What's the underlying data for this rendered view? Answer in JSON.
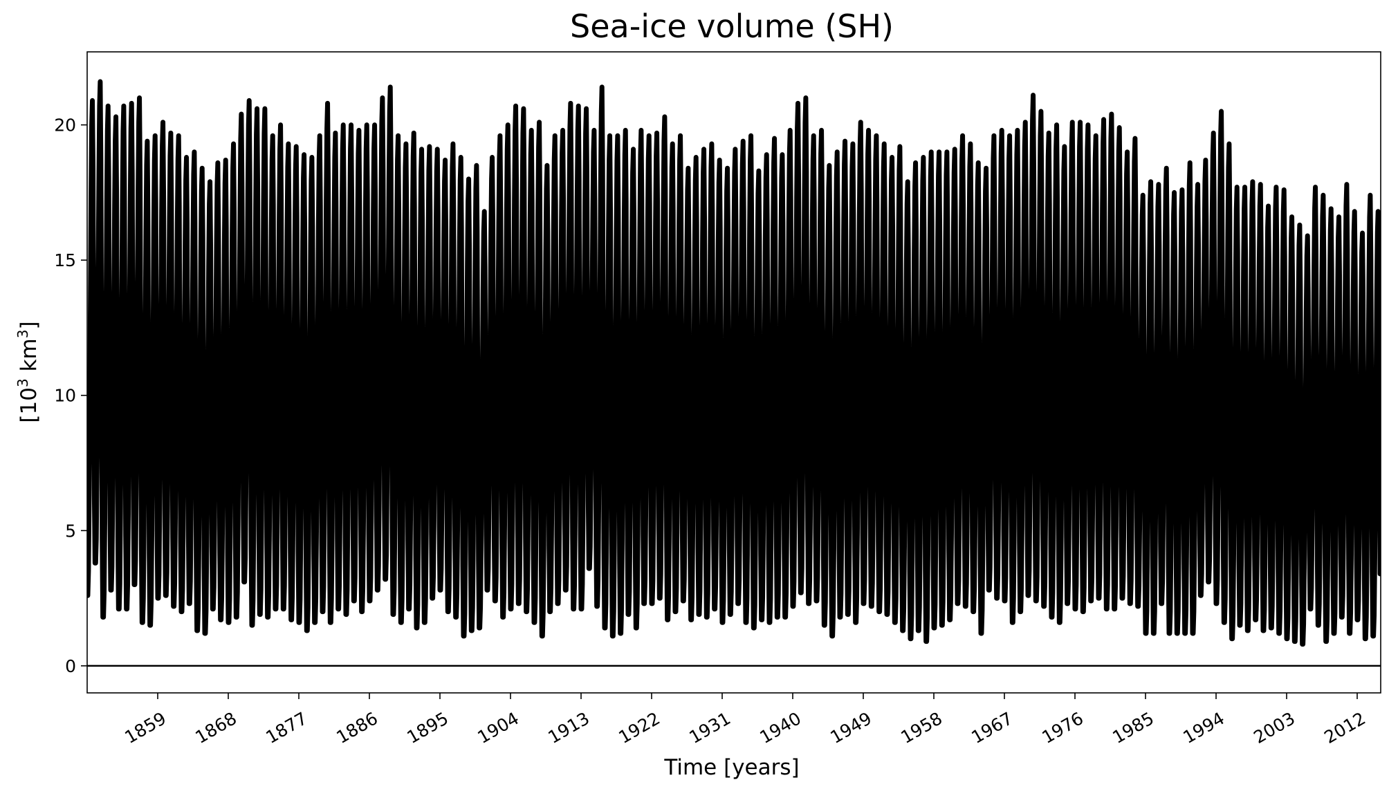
{
  "chart_data": {
    "type": "line",
    "title": "Sea-ice volume (SH)",
    "xlabel": "Time [years]",
    "ylabel_base": "[10",
    "ylabel_sup": "3",
    "ylabel_unit": " km",
    "ylabel_sup2": "3",
    "ylabel_end": "]",
    "xlim": [
      1850,
      2015
    ],
    "ylim": [
      -1.0,
      22.7
    ],
    "x_ticks": [
      1859,
      1868,
      1877,
      1886,
      1895,
      1904,
      1913,
      1922,
      1931,
      1940,
      1949,
      1958,
      1967,
      1976,
      1985,
      1994,
      2003,
      2012
    ],
    "y_ticks": [
      0,
      5,
      10,
      15,
      20
    ],
    "zero_line": 0,
    "grid": false,
    "line_color": "#000000",
    "series": [
      {
        "sampling": "monthly, seasonal cycle between annual maximum and minimum",
        "years": [
          1850,
          1851,
          1852,
          1853,
          1854,
          1855,
          1856,
          1857,
          1858,
          1859,
          1860,
          1861,
          1862,
          1863,
          1864,
          1865,
          1866,
          1867,
          1868,
          1869,
          1870,
          1871,
          1872,
          1873,
          1874,
          1875,
          1876,
          1877,
          1878,
          1879,
          1880,
          1881,
          1882,
          1883,
          1884,
          1885,
          1886,
          1887,
          1888,
          1889,
          1890,
          1891,
          1892,
          1893,
          1894,
          1895,
          1896,
          1897,
          1898,
          1899,
          1900,
          1901,
          1902,
          1903,
          1904,
          1905,
          1906,
          1907,
          1908,
          1909,
          1910,
          1911,
          1912,
          1913,
          1914,
          1915,
          1916,
          1917,
          1918,
          1919,
          1920,
          1921,
          1922,
          1923,
          1924,
          1925,
          1926,
          1927,
          1928,
          1929,
          1930,
          1931,
          1932,
          1933,
          1934,
          1935,
          1936,
          1937,
          1938,
          1939,
          1940,
          1941,
          1942,
          1943,
          1944,
          1945,
          1946,
          1947,
          1948,
          1949,
          1950,
          1951,
          1952,
          1953,
          1954,
          1955,
          1956,
          1957,
          1958,
          1959,
          1960,
          1961,
          1962,
          1963,
          1964,
          1965,
          1966,
          1967,
          1968,
          1969,
          1970,
          1971,
          1972,
          1973,
          1974,
          1975,
          1976,
          1977,
          1978,
          1979,
          1980,
          1981,
          1982,
          1983,
          1984,
          1985,
          1986,
          1987,
          1988,
          1989,
          1990,
          1991,
          1992,
          1993,
          1994,
          1995,
          1996,
          1997,
          1998,
          1999,
          2000,
          2001,
          2002,
          2003,
          2004,
          2005,
          2006,
          2007,
          2008,
          2009,
          2010,
          2011,
          2012,
          2013,
          2014
        ],
        "annual_max": [
          20.9,
          21.6,
          20.7,
          20.3,
          20.7,
          20.8,
          21.0,
          19.4,
          19.6,
          20.1,
          19.7,
          19.6,
          18.8,
          19.0,
          18.4,
          17.9,
          18.6,
          18.7,
          19.3,
          20.4,
          20.9,
          20.6,
          20.6,
          19.6,
          20.0,
          19.3,
          19.2,
          18.9,
          18.8,
          19.6,
          20.8,
          19.7,
          20.0,
          20.0,
          19.8,
          20.0,
          20.0,
          21.0,
          21.4,
          19.6,
          19.3,
          19.7,
          19.1,
          19.2,
          19.1,
          18.7,
          19.3,
          18.8,
          18.0,
          18.5,
          16.8,
          18.8,
          19.6,
          20.0,
          20.7,
          20.6,
          19.8,
          20.1,
          18.5,
          19.6,
          19.8,
          20.8,
          20.7,
          20.6,
          19.8,
          21.4,
          19.6,
          19.6,
          19.8,
          19.1,
          19.8,
          19.6,
          19.7,
          20.3,
          19.3,
          19.6,
          18.4,
          18.8,
          19.1,
          19.3,
          18.7,
          18.4,
          19.1,
          19.4,
          19.6,
          18.3,
          18.9,
          19.5,
          18.9,
          19.8,
          20.8,
          21.0,
          19.6,
          19.8,
          18.5,
          19.0,
          19.4,
          19.3,
          20.1,
          19.8,
          19.6,
          19.3,
          18.8,
          19.2,
          17.9,
          18.6,
          18.8,
          19.0,
          19.0,
          19.0,
          19.1,
          19.6,
          19.3,
          18.6,
          18.4,
          19.6,
          19.8,
          19.6,
          19.8,
          20.1,
          21.1,
          20.5,
          19.7,
          20.0,
          19.2,
          20.1,
          20.1,
          20.0,
          19.6,
          20.2,
          20.4,
          19.9,
          19.0,
          19.5,
          17.4,
          17.9,
          17.8,
          18.4,
          17.5,
          17.6,
          18.6,
          17.8,
          18.7,
          19.7,
          20.5,
          19.3,
          17.7,
          17.7,
          17.9,
          17.8,
          17.0,
          17.7,
          17.6,
          16.6,
          16.3,
          15.9,
          17.7,
          17.4,
          16.9,
          16.6,
          17.8,
          16.8,
          16.0,
          17.4,
          16.8
        ],
        "annual_min": [
          2.6,
          3.8,
          1.8,
          2.8,
          2.1,
          2.1,
          3.0,
          1.6,
          1.5,
          2.5,
          2.6,
          2.2,
          2.0,
          2.3,
          1.3,
          1.2,
          2.1,
          1.7,
          1.6,
          1.8,
          3.1,
          1.5,
          1.9,
          1.8,
          2.1,
          2.1,
          1.7,
          1.6,
          1.3,
          1.6,
          2.0,
          1.6,
          2.1,
          1.9,
          2.4,
          2.0,
          2.4,
          2.8,
          3.2,
          1.9,
          1.6,
          2.1,
          1.4,
          1.6,
          2.5,
          2.8,
          2.0,
          1.8,
          1.1,
          1.3,
          1.4,
          2.8,
          2.4,
          1.8,
          2.1,
          2.3,
          2.0,
          1.6,
          1.1,
          2.0,
          2.3,
          2.8,
          2.1,
          2.1,
          3.6,
          2.2,
          1.4,
          1.1,
          1.2,
          1.9,
          1.4,
          2.3,
          2.3,
          2.5,
          1.7,
          2.0,
          2.4,
          1.7,
          1.9,
          1.8,
          2.1,
          1.6,
          1.9,
          2.3,
          1.6,
          1.4,
          1.7,
          1.6,
          1.8,
          1.8,
          2.2,
          2.7,
          2.3,
          2.4,
          1.5,
          1.1,
          1.8,
          1.9,
          1.6,
          2.3,
          2.2,
          2.0,
          1.9,
          1.6,
          1.3,
          1.0,
          1.3,
          0.9,
          1.4,
          1.5,
          1.7,
          2.3,
          2.2,
          2.0,
          1.2,
          2.8,
          2.5,
          2.4,
          1.6,
          2.0,
          2.6,
          2.4,
          2.2,
          1.8,
          1.6,
          2.3,
          2.1,
          2.0,
          2.4,
          2.5,
          2.1,
          2.1,
          2.5,
          2.3,
          2.2,
          1.2,
          1.2,
          2.3,
          1.2,
          1.2,
          1.2,
          1.2,
          2.6,
          3.1,
          2.3,
          1.6,
          1.0,
          1.5,
          1.3,
          1.7,
          1.3,
          1.4,
          1.2,
          1.0,
          0.9,
          0.8,
          2.1,
          1.5,
          0.9,
          1.2,
          1.8,
          1.2,
          1.7,
          1.0,
          1.1
        ]
      }
    ]
  }
}
